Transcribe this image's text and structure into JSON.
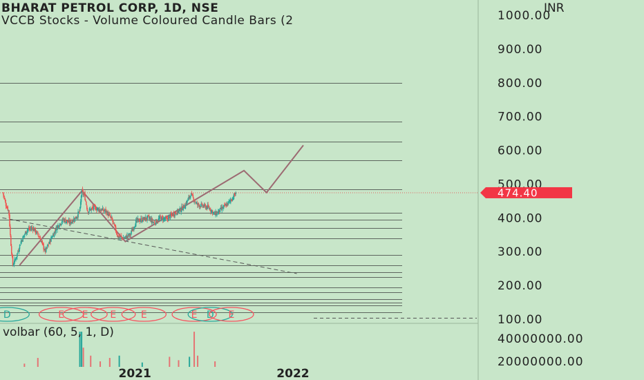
{
  "chart_data": {
    "type": "candlestick",
    "title": "BHARAT PETROL CORP, 1D, NSE",
    "subtitle": "VCCB Stocks - Volume Coloured Candle Bars (2",
    "currency": "INR",
    "y_ticks": [
      "1000.00",
      "900.00",
      "800.00",
      "700.00",
      "600.00",
      "500.00",
      "400.00",
      "300.00",
      "200.00",
      "100.00"
    ],
    "y_tick_values": [
      1000,
      900,
      800,
      700,
      600,
      500,
      400,
      300,
      200,
      100
    ],
    "ylim": [
      100,
      1000
    ],
    "x_ticks": [
      "2021",
      "2022"
    ],
    "last_price": 474.4,
    "last_price_label": "474.40",
    "price_path": [
      [
        "2020-03-02",
        475
      ],
      [
        "2020-03-09",
        440
      ],
      [
        "2020-03-16",
        420
      ],
      [
        "2020-03-20",
        335
      ],
      [
        "2020-03-25",
        260
      ],
      [
        "2020-04-01",
        280
      ],
      [
        "2020-04-13",
        330
      ],
      [
        "2020-04-27",
        365
      ],
      [
        "2020-05-11",
        370
      ],
      [
        "2020-05-25",
        345
      ],
      [
        "2020-06-08",
        300
      ],
      [
        "2020-06-22",
        340
      ],
      [
        "2020-07-06",
        375
      ],
      [
        "2020-07-20",
        395
      ],
      [
        "2020-08-03",
        385
      ],
      [
        "2020-08-17",
        400
      ],
      [
        "2020-08-27",
        420
      ],
      [
        "2020-08-31",
        478
      ],
      [
        "2020-09-07",
        465
      ],
      [
        "2020-09-14",
        420
      ],
      [
        "2020-09-28",
        430
      ],
      [
        "2020-10-12",
        425
      ],
      [
        "2020-10-26",
        420
      ],
      [
        "2020-11-09",
        395
      ],
      [
        "2020-11-23",
        345
      ],
      [
        "2020-12-07",
        340
      ],
      [
        "2020-12-21",
        350
      ],
      [
        "2021-01-04",
        390
      ],
      [
        "2021-01-18",
        395
      ],
      [
        "2021-02-01",
        400
      ],
      [
        "2021-02-15",
        385
      ],
      [
        "2021-03-01",
        400
      ],
      [
        "2021-03-15",
        395
      ],
      [
        "2021-03-29",
        410
      ],
      [
        "2021-04-12",
        420
      ],
      [
        "2021-04-26",
        435
      ],
      [
        "2021-05-10",
        470
      ],
      [
        "2021-05-24",
        440
      ],
      [
        "2021-06-07",
        435
      ],
      [
        "2021-06-21",
        430
      ],
      [
        "2021-07-05",
        410
      ],
      [
        "2021-07-19",
        425
      ],
      [
        "2021-08-02",
        440
      ],
      [
        "2021-08-16",
        462
      ],
      [
        "2021-08-23",
        474.4
      ]
    ],
    "horizontal_levels": [
      800,
      685,
      625,
      570,
      485,
      415,
      395,
      370,
      340,
      290,
      260,
      240,
      225,
      195,
      180,
      160,
      150,
      140,
      120
    ],
    "dotted_level": 474.4,
    "trend_lines": [
      {
        "style": "dashed",
        "points": [
          [
            "2020-03-01",
            400
          ],
          [
            "2022-01-10",
            235
          ]
        ]
      },
      {
        "style": "solid",
        "points": [
          [
            "2020-04-10",
            260
          ],
          [
            "2020-09-01",
            480
          ],
          [
            "2020-12-10",
            330
          ],
          [
            "2021-09-10",
            540
          ],
          [
            "2021-11-01",
            475
          ],
          [
            "2022-01-25",
            615
          ]
        ]
      }
    ],
    "event_markers": [
      {
        "date": "2020-03-12",
        "label": "D",
        "type": "dividend"
      },
      {
        "date": "2020-07-15",
        "label": "E",
        "type": "earnings"
      },
      {
        "date": "2020-09-08",
        "label": "E",
        "type": "earnings"
      },
      {
        "date": "2020-11-12",
        "label": "E",
        "type": "earnings"
      },
      {
        "date": "2021-01-22",
        "label": "E",
        "type": "earnings"
      },
      {
        "date": "2021-05-18",
        "label": "E",
        "type": "earnings"
      },
      {
        "date": "2021-06-24",
        "label": "D",
        "type": "dividend"
      },
      {
        "date": "2021-08-12",
        "label": "E",
        "type": "earnings"
      }
    ],
    "volume_label": "volbar (60, 5, 1, D)",
    "volume_ticks": [
      "40000000.00",
      "20000000.00"
    ],
    "volume_tick_values": [
      40000000,
      20000000
    ],
    "volume_spikes": [
      {
        "date": "2020-03-20",
        "value": 14000000,
        "color": "#e57373"
      },
      {
        "date": "2020-04-21",
        "value": 18000000,
        "color": "#e57373"
      },
      {
        "date": "2020-05-22",
        "value": 23000000,
        "color": "#e57373"
      },
      {
        "date": "2020-06-17",
        "value": 14000000,
        "color": "#e57373"
      },
      {
        "date": "2020-08-27",
        "value": 46000000,
        "color": "#26a69a"
      },
      {
        "date": "2020-08-31",
        "value": 46000000,
        "color": "#26a69a"
      },
      {
        "date": "2020-09-04",
        "value": 32000000,
        "color": "#e57373"
      },
      {
        "date": "2020-09-21",
        "value": 25000000,
        "color": "#e57373"
      },
      {
        "date": "2020-10-13",
        "value": 20000000,
        "color": "#e57373"
      },
      {
        "date": "2020-11-04",
        "value": 23000000,
        "color": "#e57373"
      },
      {
        "date": "2020-11-26",
        "value": 25000000,
        "color": "#26a69a"
      },
      {
        "date": "2021-01-18",
        "value": 19000000,
        "color": "#26a69a"
      },
      {
        "date": "2021-03-22",
        "value": 24000000,
        "color": "#e57373"
      },
      {
        "date": "2021-04-12",
        "value": 21000000,
        "color": "#e57373"
      },
      {
        "date": "2021-05-07",
        "value": 24000000,
        "color": "#26a69a"
      },
      {
        "date": "2021-05-18",
        "value": 46000000,
        "color": "#e57373"
      },
      {
        "date": "2021-05-26",
        "value": 25000000,
        "color": "#e57373"
      },
      {
        "date": "2021-07-05",
        "value": 20000000,
        "color": "#e57373"
      }
    ],
    "colors": {
      "background": "#c8e6c9",
      "up": "#26a69a",
      "down": "#ef5350",
      "price_badge": "#f23645",
      "trend": "#9c6a72",
      "level_line": "#3a3a3a",
      "marker_dividend": "#26a69a",
      "marker_earnings": "#f7525f",
      "axis_divider": "#9ab79b"
    }
  }
}
